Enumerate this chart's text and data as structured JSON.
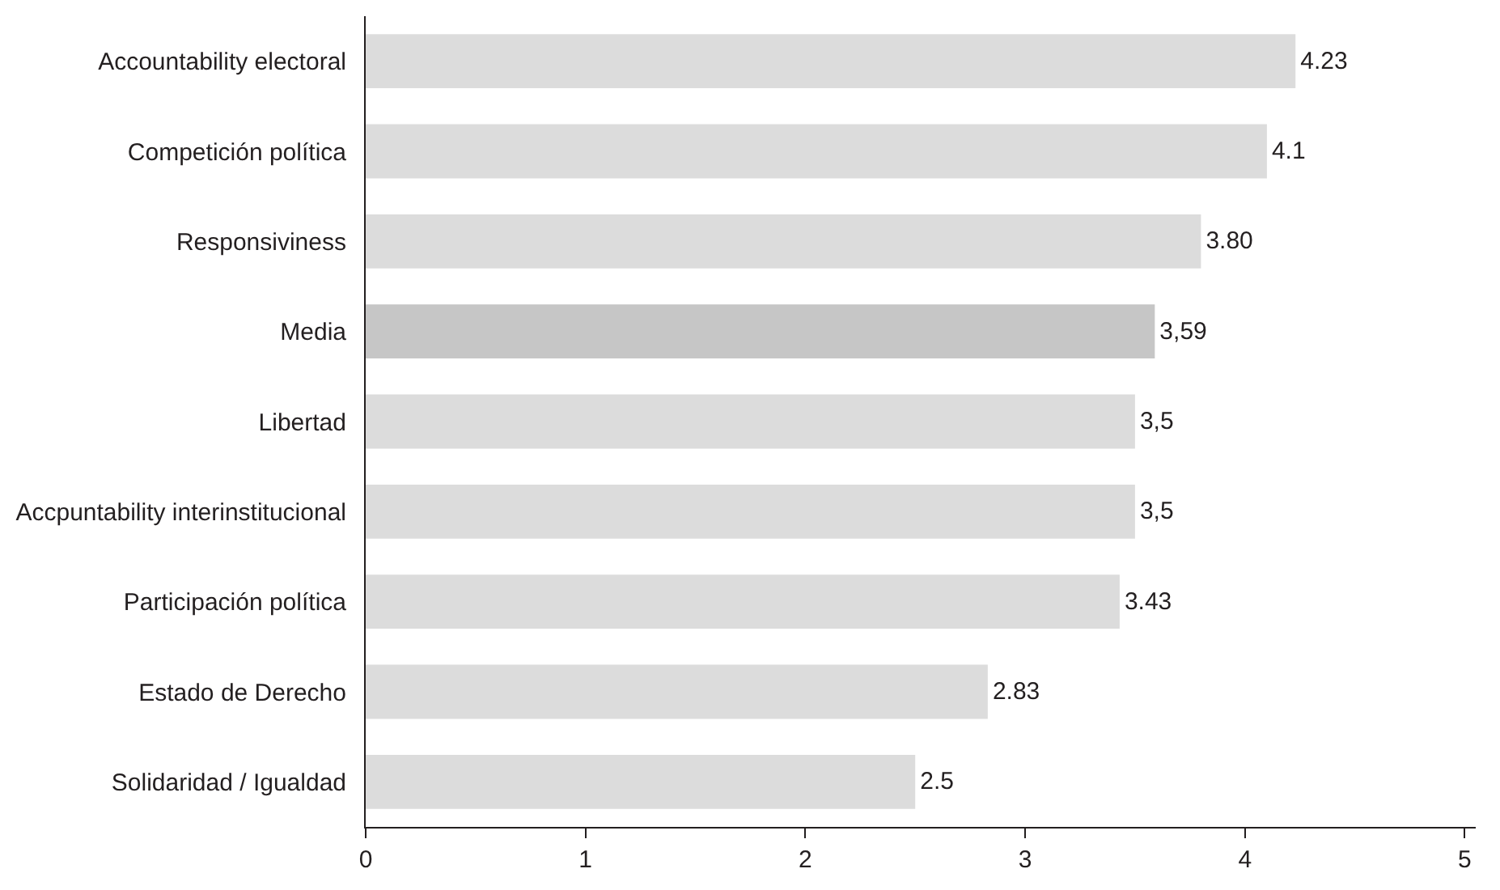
{
  "chart_data": {
    "type": "bar",
    "orientation": "horizontal",
    "categories": [
      "Accountability electoral",
      "Competición política",
      "Responsiviness",
      "Media",
      "Libertad",
      "Accpuntability interinstitucional",
      "Participación política",
      "Estado de Derecho",
      "Solidaridad / Igualdad"
    ],
    "values": [
      4.23,
      4.1,
      3.8,
      3.59,
      3.5,
      3.5,
      3.43,
      2.83,
      2.5
    ],
    "value_labels": [
      "4.23",
      "4.1",
      "3.80",
      "3,59",
      "3,5",
      "3,5",
      "3.43",
      "2.83",
      "2.5"
    ],
    "colors": [
      "#dcdcdc",
      "#dcdcdc",
      "#dcdcdc",
      "#c6c6c6",
      "#dcdcdc",
      "#dcdcdc",
      "#dcdcdc",
      "#dcdcdc",
      "#dcdcdc"
    ],
    "xlim": [
      0,
      5.05
    ],
    "xticks": [
      0,
      1,
      2,
      3,
      4,
      5
    ]
  }
}
